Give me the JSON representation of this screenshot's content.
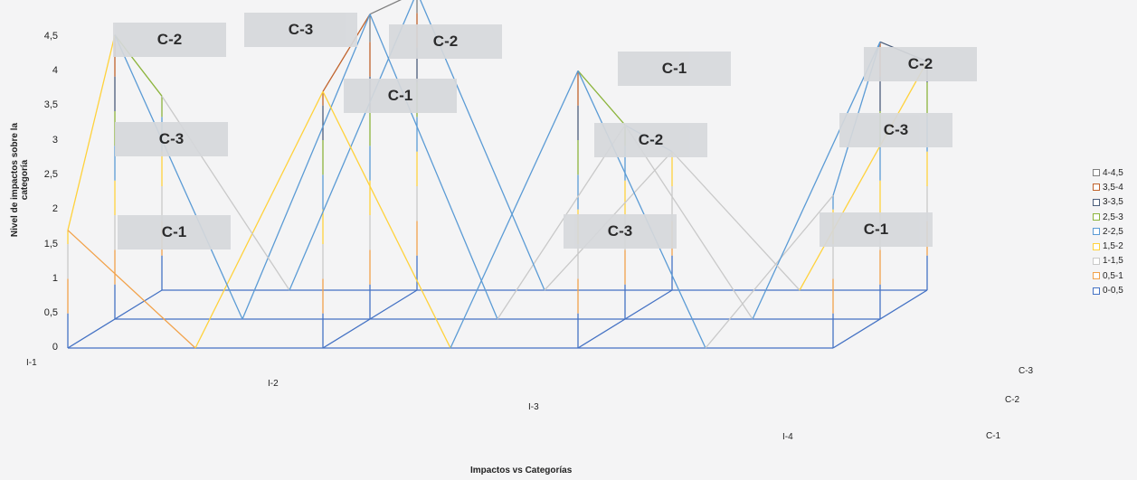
{
  "chart_data": {
    "type": "surface",
    "xlabel": "Impactos vs Categorías",
    "ylabel": "Nivel de impactos sobre la categoría",
    "yticks": [
      "0",
      "0,5",
      "1",
      "1,5",
      "2",
      "2,5",
      "3",
      "3,5",
      "4",
      "4,5"
    ],
    "ylim": [
      0,
      4.5
    ],
    "impacts": [
      "I-1",
      "I-2",
      "I-3",
      "I-4"
    ],
    "categories": [
      "C-3",
      "C-2",
      "C-1"
    ],
    "series": [
      {
        "impact": "I-1",
        "C-1": 1.7,
        "C-2": 4.1,
        "C-3": 2.8
      },
      {
        "impact": "I-2",
        "C-1": 3.7,
        "C-2": 4.4,
        "C-3": 4.3
      },
      {
        "impact": "I-3",
        "C-1": 4.0,
        "C-2": 2.8,
        "C-3": 2.0
      },
      {
        "impact": "I-4",
        "C-1": 2.2,
        "C-2": 4.0,
        "C-3": 3.3
      }
    ],
    "callouts": [
      {
        "label": "C-2",
        "impact": "I-1"
      },
      {
        "label": "C-3",
        "impact": "I-1"
      },
      {
        "label": "C-1",
        "impact": "I-1"
      },
      {
        "label": "C-3",
        "impact": "I-2"
      },
      {
        "label": "C-2",
        "impact": "I-2"
      },
      {
        "label": "C-1",
        "impact": "I-2"
      },
      {
        "label": "C-1",
        "impact": "I-3"
      },
      {
        "label": "C-2",
        "impact": "I-3"
      },
      {
        "label": "C-3",
        "impact": "I-3"
      },
      {
        "label": "C-2",
        "impact": "I-4"
      },
      {
        "label": "C-3",
        "impact": "I-4"
      },
      {
        "label": "C-1",
        "impact": "I-4"
      }
    ],
    "legend": [
      {
        "label": "4-4,5",
        "color": "#7f7f7f"
      },
      {
        "label": "3,5-4",
        "color": "#c0622b"
      },
      {
        "label": "3-3,5",
        "color": "#4a5c7a"
      },
      {
        "label": "2,5-3",
        "color": "#8cb43c"
      },
      {
        "label": "2-2,5",
        "color": "#5b9bd5"
      },
      {
        "label": "1,5-2",
        "color": "#ffd23c"
      },
      {
        "label": "1-1,5",
        "color": "#c9c9c9"
      },
      {
        "label": "0,5-1",
        "color": "#f2a24a"
      },
      {
        "label": "0-0,5",
        "color": "#4472c4"
      }
    ],
    "legend_position": "right"
  }
}
